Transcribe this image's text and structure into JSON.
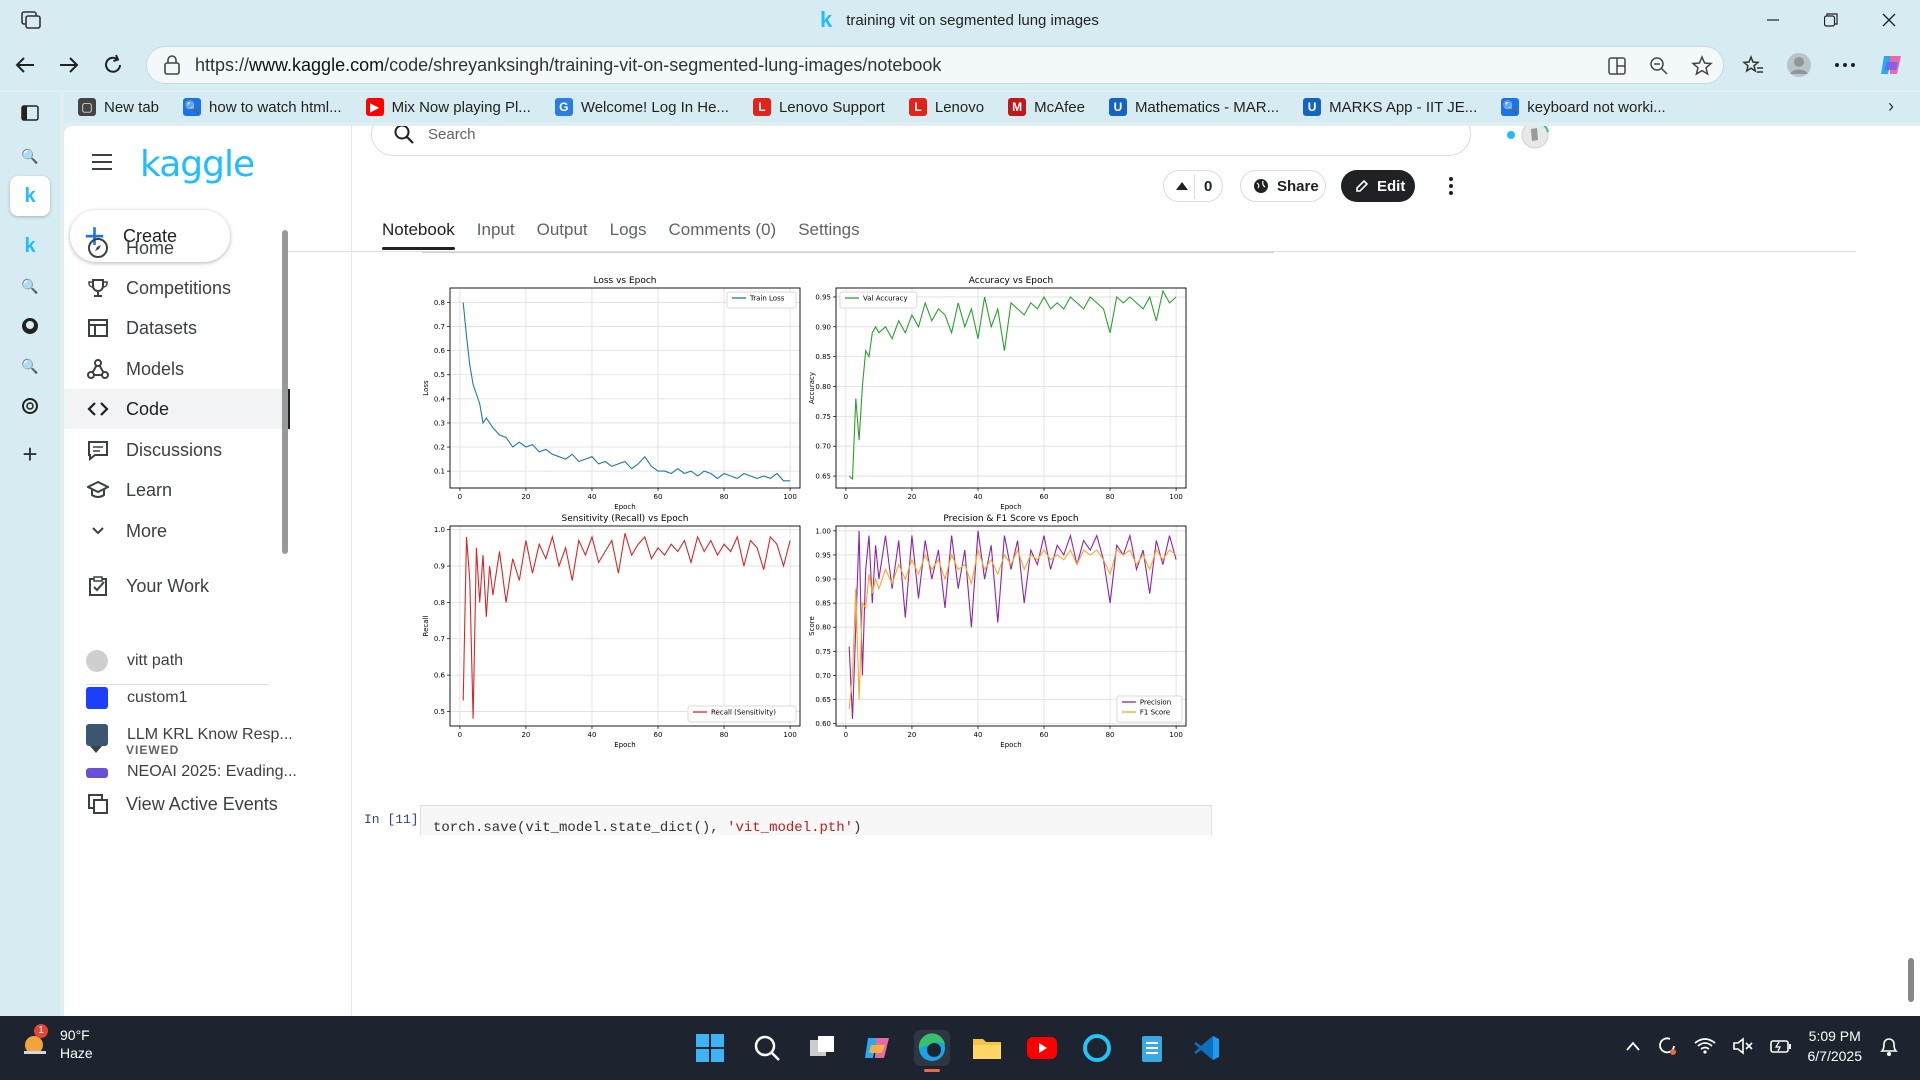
{
  "browser": {
    "window_title": "training vit on segmented lung images",
    "url_prefix": "https://",
    "url_domain": "www.kaggle.com",
    "url_path": "/code/shreyanksingh/training-vit-on-segmented-lung-images/notebook",
    "bookmarks": [
      {
        "label": "New tab",
        "color": "#444444",
        "glyph": "▢"
      },
      {
        "label": "how to watch html...",
        "color": "#1a73e8",
        "glyph": "🔍"
      },
      {
        "label": "Mix Now playing Pl...",
        "color": "#ff0000",
        "glyph": "▶"
      },
      {
        "label": "Welcome! Log In He...",
        "color": "#2a7de1",
        "glyph": "G"
      },
      {
        "label": "Lenovo Support",
        "color": "#e2231a",
        "glyph": "L"
      },
      {
        "label": "Lenovo",
        "color": "#e2231a",
        "glyph": "L"
      },
      {
        "label": "McAfee",
        "color": "#c01818",
        "glyph": "M"
      },
      {
        "label": "Mathematics - MAR...",
        "color": "#1565c0",
        "glyph": "U"
      },
      {
        "label": "MARKS App - IIT JE...",
        "color": "#1565c0",
        "glyph": "U"
      },
      {
        "label": "keyboard not worki...",
        "color": "#1a73e8",
        "glyph": "🔍"
      }
    ]
  },
  "kaggle": {
    "logo": "kaggle",
    "create_label": "Create",
    "nav": [
      {
        "label": "Home",
        "icon": "compass-icon"
      },
      {
        "label": "Competitions",
        "icon": "trophy-icon"
      },
      {
        "label": "Datasets",
        "icon": "table-icon"
      },
      {
        "label": "Models",
        "icon": "models-icon"
      },
      {
        "label": "Code",
        "icon": "code-icon"
      },
      {
        "label": "Discussions",
        "icon": "discussion-icon"
      },
      {
        "label": "Learn",
        "icon": "learn-icon"
      },
      {
        "label": "More",
        "icon": "chevron-down-icon"
      }
    ],
    "your_work": "Your Work",
    "viewed_heading": "VIEWED",
    "recent": [
      {
        "label": "vitt path",
        "color": "#cfcfcf"
      },
      {
        "label": "custom1",
        "color": "#1f3fff"
      },
      {
        "label": "LLM KRL Know Resp...",
        "color": "#3b5670"
      },
      {
        "label": "NEOAI 2025: Evading...",
        "color": "#6a4fd8"
      }
    ],
    "view_active_events": "View Active Events",
    "search_placeholder": "Search",
    "vote_count": "0",
    "share_label": "Share",
    "edit_label": "Edit",
    "tabs": [
      "Notebook",
      "Input",
      "Output",
      "Logs",
      "Comments (0)",
      "Settings"
    ],
    "cell_prompt": "In [11]:",
    "cell_code_a": "torch.save(vit_model.state_dict(), ",
    "cell_code_b": "'vit_model.pth'",
    "cell_code_c": ")"
  },
  "chart_data": [
    {
      "type": "line",
      "title": "Loss vs Epoch",
      "xlabel": "Epoch",
      "ylabel": "Loss",
      "xlim": [
        -3,
        103
      ],
      "ylim": [
        0.03,
        0.86
      ],
      "xticks": [
        0,
        20,
        40,
        60,
        80,
        100
      ],
      "yticks": [
        0.1,
        0.2,
        0.3,
        0.4,
        0.5,
        0.6,
        0.7,
        0.8
      ],
      "legend": "upper-right",
      "series": [
        {
          "name": "Train Loss",
          "color": "#1f77b4",
          "x": [
            1,
            2,
            3,
            4,
            5,
            6,
            7,
            8,
            9,
            10,
            12,
            14,
            16,
            18,
            20,
            22,
            24,
            26,
            28,
            30,
            32,
            34,
            36,
            38,
            40,
            42,
            44,
            46,
            48,
            50,
            52,
            54,
            56,
            58,
            60,
            62,
            64,
            66,
            68,
            70,
            72,
            74,
            76,
            78,
            80,
            82,
            84,
            86,
            88,
            90,
            92,
            94,
            96,
            98,
            100
          ],
          "y": [
            0.8,
            0.66,
            0.54,
            0.46,
            0.42,
            0.38,
            0.3,
            0.32,
            0.3,
            0.28,
            0.25,
            0.24,
            0.2,
            0.22,
            0.2,
            0.21,
            0.18,
            0.19,
            0.17,
            0.16,
            0.15,
            0.17,
            0.14,
            0.15,
            0.16,
            0.13,
            0.14,
            0.12,
            0.13,
            0.14,
            0.11,
            0.13,
            0.16,
            0.12,
            0.1,
            0.1,
            0.09,
            0.11,
            0.09,
            0.1,
            0.08,
            0.1,
            0.09,
            0.07,
            0.09,
            0.08,
            0.07,
            0.09,
            0.08,
            0.07,
            0.08,
            0.07,
            0.09,
            0.06,
            0.06
          ]
        }
      ]
    },
    {
      "type": "line",
      "title": "Accuracy vs Epoch",
      "xlabel": "Epoch",
      "ylabel": "Accuracy",
      "xlim": [
        -3,
        103
      ],
      "ylim": [
        0.63,
        0.965
      ],
      "xticks": [
        0,
        20,
        40,
        60,
        80,
        100
      ],
      "yticks": [
        0.65,
        0.7,
        0.75,
        0.8,
        0.85,
        0.9,
        0.95
      ],
      "legend": "upper-left",
      "series": [
        {
          "name": "Val Accuracy",
          "color": "#2ca02c",
          "x": [
            1,
            2,
            3,
            4,
            5,
            6,
            7,
            8,
            9,
            10,
            12,
            14,
            16,
            18,
            20,
            22,
            24,
            26,
            28,
            30,
            32,
            34,
            36,
            38,
            40,
            42,
            44,
            46,
            48,
            50,
            52,
            54,
            56,
            58,
            60,
            62,
            64,
            66,
            68,
            70,
            72,
            74,
            76,
            78,
            80,
            82,
            84,
            86,
            88,
            90,
            92,
            94,
            96,
            98,
            100
          ],
          "y": [
            0.65,
            0.645,
            0.78,
            0.71,
            0.8,
            0.86,
            0.85,
            0.89,
            0.9,
            0.89,
            0.9,
            0.88,
            0.91,
            0.89,
            0.92,
            0.9,
            0.94,
            0.91,
            0.93,
            0.92,
            0.89,
            0.94,
            0.9,
            0.93,
            0.88,
            0.95,
            0.9,
            0.93,
            0.86,
            0.94,
            0.93,
            0.92,
            0.94,
            0.93,
            0.95,
            0.93,
            0.94,
            0.93,
            0.95,
            0.94,
            0.93,
            0.95,
            0.94,
            0.93,
            0.89,
            0.95,
            0.94,
            0.95,
            0.94,
            0.93,
            0.95,
            0.91,
            0.96,
            0.94,
            0.95
          ]
        }
      ]
    },
    {
      "type": "line",
      "title": "Sensitivity (Recall) vs Epoch",
      "xlabel": "Epoch",
      "ylabel": "Recall",
      "xlim": [
        -3,
        103
      ],
      "ylim": [
        0.46,
        1.01
      ],
      "xticks": [
        0,
        20,
        40,
        60,
        80,
        100
      ],
      "yticks": [
        0.5,
        0.6,
        0.7,
        0.8,
        0.9,
        1.0
      ],
      "legend": "lower-right",
      "series": [
        {
          "name": "Recall (Sensitivity)",
          "color": "#d62728",
          "x": [
            1,
            2,
            3,
            4,
            5,
            6,
            7,
            8,
            9,
            10,
            12,
            14,
            16,
            18,
            20,
            22,
            24,
            26,
            28,
            30,
            32,
            34,
            36,
            38,
            40,
            42,
            44,
            46,
            48,
            50,
            52,
            54,
            56,
            58,
            60,
            62,
            64,
            66,
            68,
            70,
            72,
            74,
            76,
            78,
            80,
            82,
            84,
            86,
            88,
            90,
            92,
            94,
            96,
            98,
            100
          ],
          "y": [
            0.53,
            0.98,
            0.86,
            0.48,
            0.95,
            0.8,
            0.93,
            0.76,
            0.9,
            0.82,
            0.94,
            0.8,
            0.92,
            0.86,
            0.97,
            0.88,
            0.96,
            0.92,
            0.98,
            0.9,
            0.95,
            0.86,
            0.97,
            0.93,
            0.98,
            0.91,
            0.94,
            0.97,
            0.88,
            0.99,
            0.93,
            0.96,
            0.98,
            0.92,
            0.95,
            0.93,
            0.96,
            0.94,
            0.97,
            0.91,
            0.98,
            0.94,
            0.97,
            0.93,
            0.96,
            0.94,
            0.98,
            0.9,
            0.97,
            0.95,
            0.89,
            0.98,
            0.96,
            0.9,
            0.97
          ]
        }
      ]
    },
    {
      "type": "line",
      "title": "Precision & F1 Score vs Epoch",
      "xlabel": "Epoch",
      "ylabel": "Score",
      "xlim": [
        -3,
        103
      ],
      "ylim": [
        0.595,
        1.01
      ],
      "xticks": [
        0,
        20,
        40,
        60,
        80,
        100
      ],
      "yticks": [
        0.6,
        0.65,
        0.7,
        0.75,
        0.8,
        0.85,
        0.9,
        0.95,
        1.0
      ],
      "legend": "lower-right",
      "series": [
        {
          "name": "Precision",
          "color": "#8e24aa",
          "x": [
            1,
            2,
            3,
            4,
            5,
            6,
            7,
            8,
            9,
            10,
            12,
            14,
            16,
            18,
            20,
            22,
            24,
            26,
            28,
            30,
            32,
            34,
            36,
            38,
            40,
            42,
            44,
            46,
            48,
            50,
            52,
            54,
            56,
            58,
            60,
            62,
            64,
            66,
            68,
            70,
            72,
            74,
            76,
            78,
            80,
            82,
            84,
            86,
            88,
            90,
            92,
            94,
            96,
            98,
            100
          ],
          "y": [
            0.76,
            0.61,
            0.8,
            1.0,
            0.7,
            0.92,
            0.99,
            0.85,
            0.97,
            0.9,
            0.99,
            0.88,
            0.98,
            0.82,
            0.99,
            0.86,
            0.98,
            0.9,
            0.96,
            0.84,
            0.99,
            0.88,
            0.96,
            0.8,
            1.0,
            0.9,
            0.97,
            0.81,
            0.99,
            0.92,
            0.98,
            0.85,
            0.96,
            0.93,
            0.99,
            0.92,
            0.97,
            0.95,
            0.99,
            0.93,
            0.98,
            0.96,
            0.99,
            0.94,
            0.85,
            0.97,
            0.95,
            0.99,
            0.92,
            0.96,
            0.87,
            0.98,
            0.93,
            0.99,
            0.94
          ]
        },
        {
          "name": "F1 Score",
          "color": "#ffa726",
          "x": [
            1,
            2,
            3,
            4,
            5,
            6,
            7,
            8,
            9,
            10,
            12,
            14,
            16,
            18,
            20,
            22,
            24,
            26,
            28,
            30,
            32,
            34,
            36,
            38,
            40,
            42,
            44,
            46,
            48,
            50,
            52,
            54,
            56,
            58,
            60,
            62,
            64,
            66,
            68,
            70,
            72,
            74,
            76,
            78,
            80,
            82,
            84,
            86,
            88,
            90,
            92,
            94,
            96,
            98,
            100
          ],
          "y": [
            0.63,
            0.7,
            0.88,
            0.65,
            0.85,
            0.84,
            0.91,
            0.87,
            0.9,
            0.88,
            0.92,
            0.89,
            0.93,
            0.9,
            0.94,
            0.91,
            0.95,
            0.92,
            0.94,
            0.9,
            0.95,
            0.92,
            0.93,
            0.89,
            0.96,
            0.92,
            0.94,
            0.91,
            0.95,
            0.93,
            0.96,
            0.92,
            0.95,
            0.94,
            0.96,
            0.94,
            0.95,
            0.94,
            0.96,
            0.93,
            0.96,
            0.95,
            0.96,
            0.94,
            0.91,
            0.96,
            0.95,
            0.96,
            0.93,
            0.95,
            0.92,
            0.96,
            0.94,
            0.96,
            0.95
          ]
        }
      ]
    }
  ],
  "taskbar": {
    "temperature": "90°F",
    "condition": "Haze",
    "badge": "1",
    "time": "5:09 PM",
    "date": "6/7/2025"
  }
}
